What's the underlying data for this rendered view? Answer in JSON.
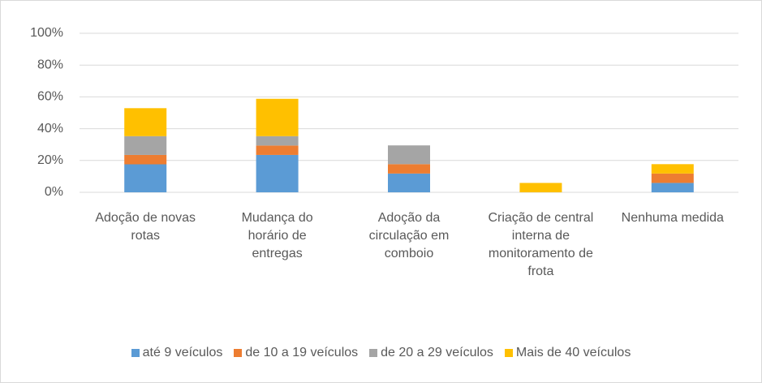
{
  "chart_data": {
    "type": "stacked_bar",
    "categories": [
      "Adoção de novas rotas",
      "Mudança do horário de entregas",
      "Adoção da circulação em comboio",
      "Criação de central interna de monitoramento de frota",
      "Nenhuma medida"
    ],
    "series": [
      {
        "name": "até 9 veículos",
        "color": "#5b9bd5",
        "values": [
          17.6,
          23.5,
          11.8,
          0,
          5.9
        ]
      },
      {
        "name": "de 10 a 19 veículos",
        "color": "#ed7d31",
        "values": [
          5.9,
          5.9,
          5.9,
          0,
          5.9
        ]
      },
      {
        "name": "de 20 a 29 veículos",
        "color": "#a5a5a5",
        "values": [
          11.8,
          5.9,
          11.8,
          0,
          0
        ]
      },
      {
        "name": "Mais de 40 veículos",
        "color": "#ffc000",
        "values": [
          17.6,
          23.5,
          0,
          5.9,
          5.9
        ]
      }
    ],
    "ylim": [
      0,
      100
    ],
    "yticks": [
      {
        "value": 0,
        "label": "0%"
      },
      {
        "value": 20,
        "label": "20%"
      },
      {
        "value": 40,
        "label": "40%"
      },
      {
        "value": 60,
        "label": "60%"
      },
      {
        "value": 80,
        "label": "80%"
      },
      {
        "value": 100,
        "label": "100%"
      }
    ],
    "grid": true,
    "legend": "bottom"
  }
}
